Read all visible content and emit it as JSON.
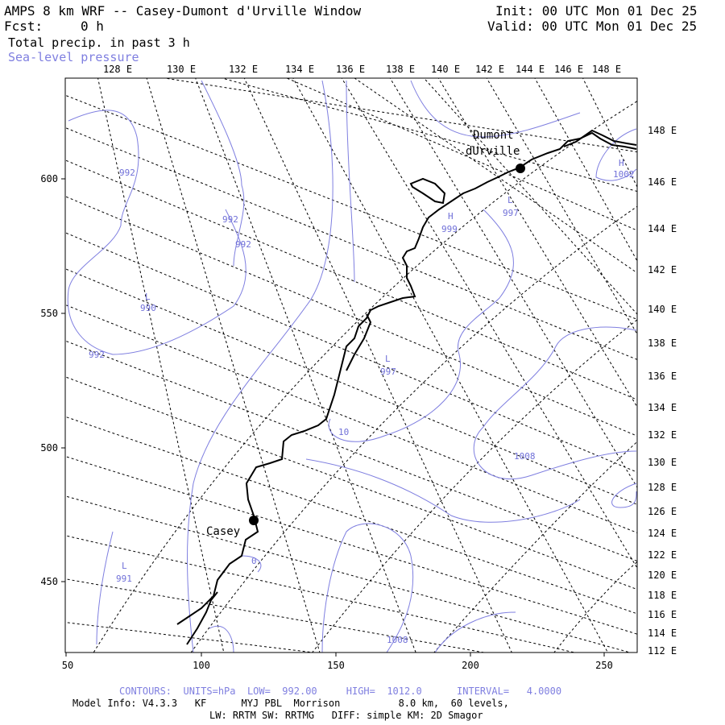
{
  "header": {
    "title": "AMPS 8 km WRF -- Casey-Dumont d'Urville Window",
    "init": "Init: 00 UTC Mon 01 Dec 25",
    "fcst_label": "Fcst:",
    "fcst_value": "0 h",
    "valid": "Valid: 00 UTC Mon 01 Dec 25",
    "field1": "Total precip. in past 3 h",
    "field2": "Sea-level pressure"
  },
  "axes": {
    "x_ticks": [
      "50",
      "100",
      "150",
      "200",
      "250"
    ],
    "y_ticks": [
      "600",
      "550",
      "500",
      "450"
    ],
    "top_lon": [
      "128 E",
      "130 E",
      "132 E",
      "134 E",
      "136 E",
      "138 E",
      "140 E",
      "142 E",
      "144 E",
      "146 E",
      "148 E"
    ],
    "right_lon": [
      "148 E",
      "146 E",
      "144 E",
      "142 E",
      "140 E",
      "138 E",
      "136 E",
      "134 E",
      "132 E",
      "130 E",
      "128 E",
      "126 E",
      "124 E",
      "122 E",
      "120 E",
      "118 E",
      "116 E",
      "114 E",
      "112 E"
    ]
  },
  "stations": {
    "casey": "Casey",
    "dumont_line1": "Dumont",
    "dumont_line2": "dUrville"
  },
  "contour_labels": {
    "c992a": "992",
    "c992b": "992",
    "c992c": "992",
    "c992d": "992",
    "l990_letter": "L",
    "l990": "990",
    "l997a_letter": "L",
    "l997a": "997",
    "l997b_letter": "L",
    "l997b": "997",
    "h999_letter": "H",
    "h999": "999",
    "h1002_letter": "H",
    "h1002": "1002",
    "l991_letter": "L",
    "l991": "991",
    "c1008a": "1008",
    "c1008b": "1008",
    "c10": "10",
    "c0": "0"
  },
  "footer": {
    "contours": "CONTOURS:  UNITS=hPa  LOW=  992.00     HIGH=  1012.0      INTERVAL=   4.0000",
    "model": "Model Info: V4.3.3   KF      MYJ PBL  Morrison          8.0 km,  60 levels,",
    "physics": "LW: RRTM SW: RRTMG   DIFF: simple KM: 2D Smagor"
  },
  "colors": {
    "contour": "#7f7fe0",
    "grid": "#000000",
    "coast": "#000000"
  }
}
